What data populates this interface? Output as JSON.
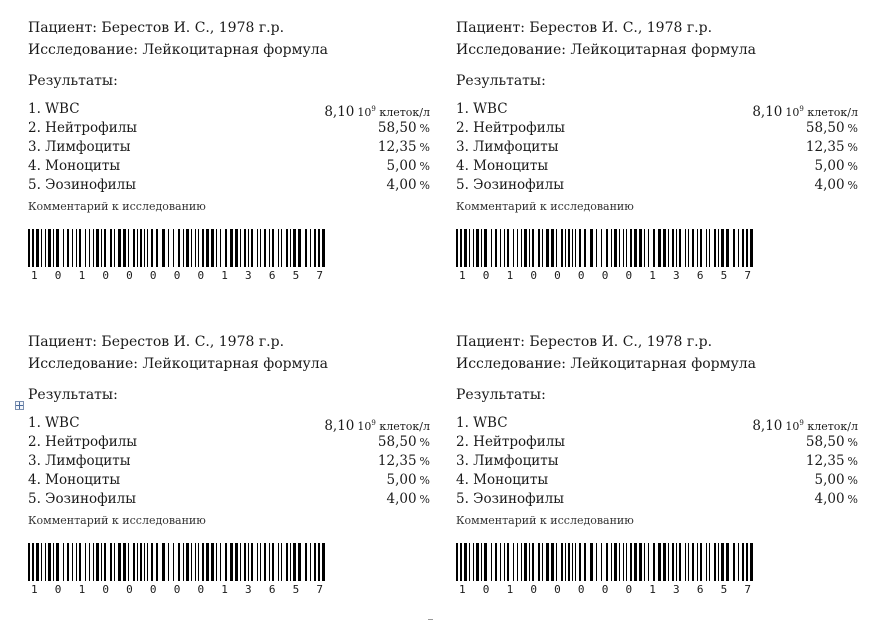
{
  "cards": [
    {
      "patient": "Пациент: Берестов И. С., 1978 г.р.",
      "study": "Исследование: Лейкоцитарная формула",
      "results_label": "Результаты:",
      "rows": [
        {
          "name": "1. WBC",
          "value": "8,10",
          "unit_base": "10",
          "unit_exp": "9",
          "unit_rest": " клеток/л"
        },
        {
          "name": "2. Нейтрофилы",
          "value": "58,50",
          "unit_rest": "%"
        },
        {
          "name": "3. Лимфоциты",
          "value": "12,35",
          "unit_rest": "%"
        },
        {
          "name": "4. Моноциты",
          "value": "5,00",
          "unit_rest": "%"
        },
        {
          "name": "5. Эозинофилы",
          "value": "4,00",
          "unit_rest": "%"
        }
      ],
      "comment": "Комментарий к исследованию",
      "barcode_digits": [
        "1",
        "0",
        "1",
        "0",
        "0",
        "0",
        "0",
        "0",
        "1",
        "3",
        "6",
        "5",
        "7"
      ]
    },
    {
      "patient": "Пациент: Берестов И. С., 1978 г.р.",
      "study": "Исследование: Лейкоцитарная формула",
      "results_label": "Результаты:",
      "rows": [
        {
          "name": "1. WBC",
          "value": "8,10",
          "unit_base": "10",
          "unit_exp": "9",
          "unit_rest": " клеток/л"
        },
        {
          "name": "2. Нейтрофилы",
          "value": "58,50",
          "unit_rest": "%"
        },
        {
          "name": "3. Лимфоциты",
          "value": "12,35",
          "unit_rest": "%"
        },
        {
          "name": "4. Моноциты",
          "value": "5,00",
          "unit_rest": "%"
        },
        {
          "name": "5. Эозинофилы",
          "value": "4,00",
          "unit_rest": "%"
        }
      ],
      "comment": "Комментарий к исследованию",
      "barcode_digits": [
        "1",
        "0",
        "1",
        "0",
        "0",
        "0",
        "0",
        "0",
        "1",
        "3",
        "6",
        "5",
        "7"
      ]
    },
    {
      "patient": "Пациент: Берестов И. С., 1978 г.р.",
      "study": "Исследование: Лейкоцитарная формула",
      "results_label": "Результаты:",
      "rows": [
        {
          "name": "1. WBC",
          "value": "8,10",
          "unit_base": "10",
          "unit_exp": "9",
          "unit_rest": " клеток/л"
        },
        {
          "name": "2. Нейтрофилы",
          "value": "58,50",
          "unit_rest": "%"
        },
        {
          "name": "3. Лимфоциты",
          "value": "12,35",
          "unit_rest": "%"
        },
        {
          "name": "4. Моноциты",
          "value": "5,00",
          "unit_rest": "%"
        },
        {
          "name": "5. Эозинофилы",
          "value": "4,00",
          "unit_rest": "%"
        }
      ],
      "comment": "Комментарий к исследованию",
      "barcode_digits": [
        "1",
        "0",
        "1",
        "0",
        "0",
        "0",
        "0",
        "0",
        "1",
        "3",
        "6",
        "5",
        "7"
      ]
    },
    {
      "patient": "Пациент: Берестов И. С., 1978 г.р.",
      "study": "Исследование: Лейкоцитарная формула",
      "results_label": "Результаты:",
      "rows": [
        {
          "name": "1. WBC",
          "value": "8,10",
          "unit_base": "10",
          "unit_exp": "9",
          "unit_rest": " клеток/л"
        },
        {
          "name": "2. Нейтрофилы",
          "value": "58,50",
          "unit_rest": "%"
        },
        {
          "name": "3. Лимфоциты",
          "value": "12,35",
          "unit_rest": "%"
        },
        {
          "name": "4. Моноциты",
          "value": "5,00",
          "unit_rest": "%"
        },
        {
          "name": "5. Эозинофилы",
          "value": "4,00",
          "unit_rest": "%"
        }
      ],
      "comment": "Комментарий к исследованию",
      "barcode_digits": [
        "1",
        "0",
        "1",
        "0",
        "0",
        "0",
        "0",
        "0",
        "1",
        "3",
        "6",
        "5",
        "7"
      ]
    }
  ],
  "icons": {
    "table_move_handle": "table-move-icon"
  },
  "colors": {
    "text": "#1a1a1a",
    "barcode": "#000000"
  }
}
